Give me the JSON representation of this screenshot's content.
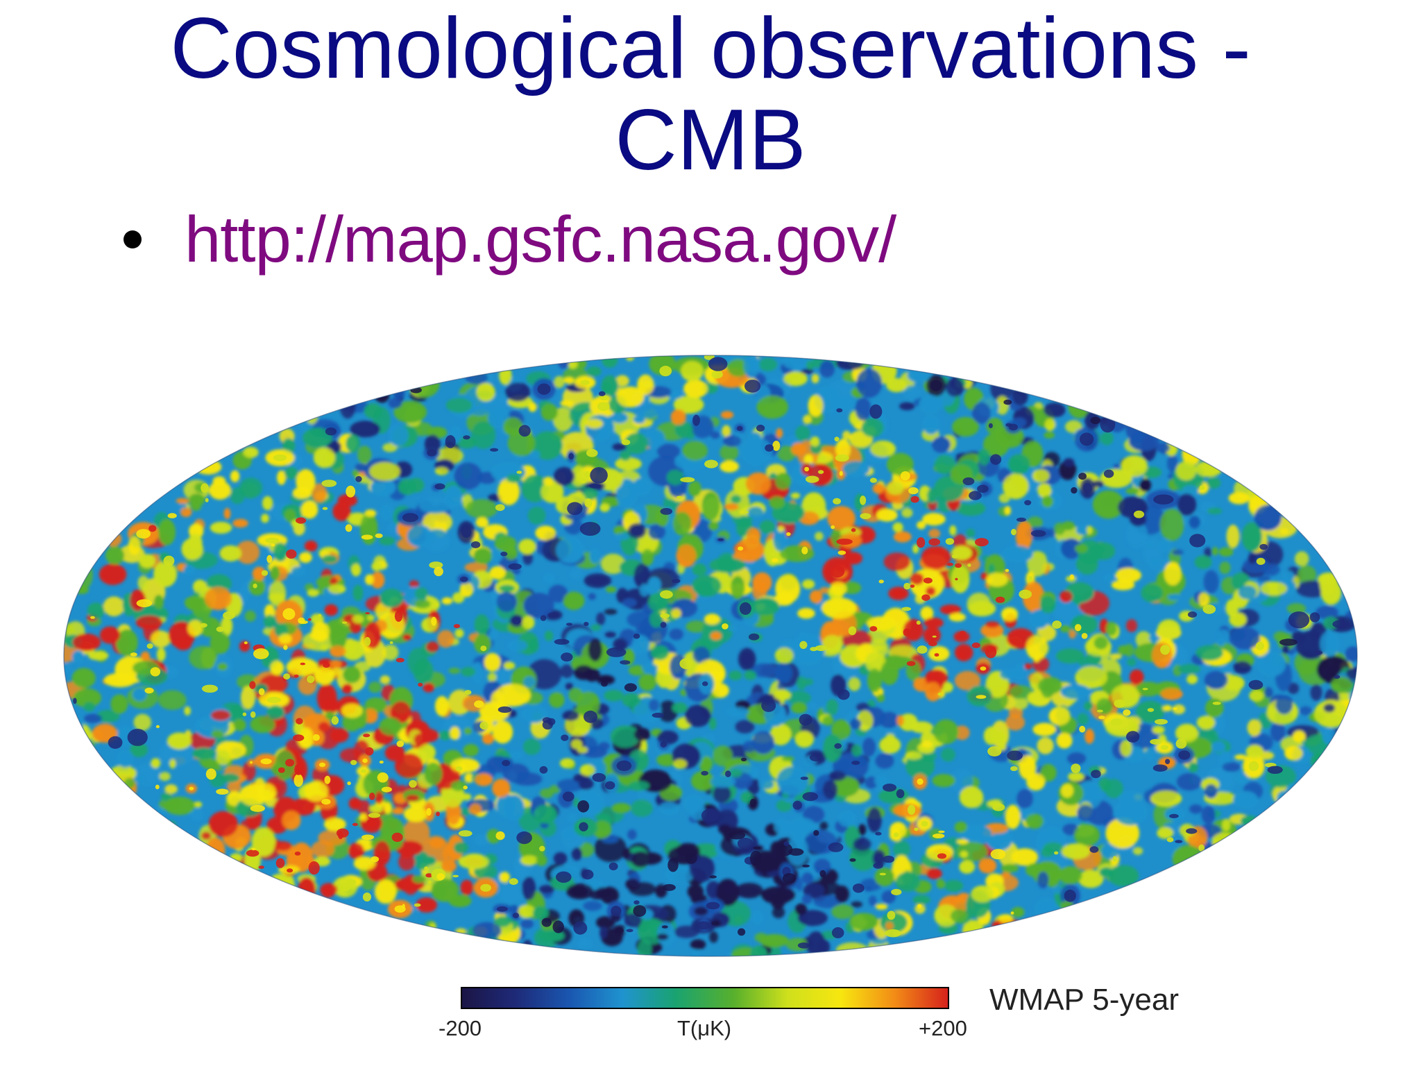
{
  "slide": {
    "title_line1": "Cosmological observations -",
    "title_line2": "CMB",
    "bullet_link": "http://map.gsfc.nasa.gov/"
  },
  "map": {
    "colors": {
      "title": "#0a0a82",
      "link": "#7f0a80",
      "scale": [
        "#1b1546",
        "#1e2a78",
        "#1a56b0",
        "#1f93cf",
        "#1aa370",
        "#58b02c",
        "#cfe01c",
        "#f7e610",
        "#f28c16",
        "#d6221c"
      ]
    }
  },
  "colorbar": {
    "min_label": "-200",
    "unit_label": "T(μK)",
    "max_label": "+200",
    "dataset_label": "WMAP 5-year"
  }
}
